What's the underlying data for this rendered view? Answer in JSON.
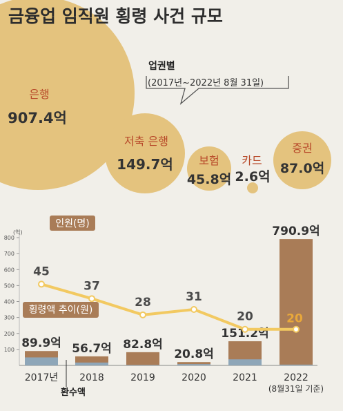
{
  "header": {
    "title": "금융업 임직원 횡령 사건 규모",
    "subtitle_line1": "업권별",
    "subtitle_line2": "(2017년~2022년 8월 31일)"
  },
  "colors": {
    "background": "#f1efe9",
    "bubble_fill": "#e4c37e",
    "bubble_text": "#b84a2a",
    "bar_total": "#a97c57",
    "bar_recovered": "#8ea6b8",
    "line": "#f2c961",
    "point_fill": "#ffffff",
    "label_tag": "#a97c57",
    "dark_text": "#333333",
    "highlight_text": "#e9a83a"
  },
  "bubble_chart": {
    "type": "bubble",
    "unit": "억",
    "items": [
      {
        "name": "은행",
        "value": 907.4,
        "value_label": "907.4억"
      },
      {
        "name": "저축 은행",
        "value": 149.7,
        "value_label": "149.7억"
      },
      {
        "name": "보험",
        "value": 45.8,
        "value_label": "45.8억"
      },
      {
        "name": "카드",
        "value": 2.6,
        "value_label": "2.6억"
      },
      {
        "name": "증권",
        "value": 87.0,
        "value_label": "87.0억"
      }
    ]
  },
  "chart_data": {
    "type": "bar",
    "categories": [
      "2017년",
      "2018",
      "2019",
      "2020",
      "2021",
      "2022"
    ],
    "category_note": "(8월31일 기준)",
    "y_unit_label": "(억)",
    "ylim": [
      0,
      800
    ],
    "yticks": [
      100,
      200,
      300,
      400,
      500,
      600,
      700,
      800
    ],
    "series": [
      {
        "name": "횡령액 추이(원)",
        "values": [
          89.9,
          56.7,
          82.8,
          20.8,
          151.2,
          790.9
        ],
        "value_labels": [
          "89.9억",
          "56.7억",
          "82.8억",
          "20.8억",
          "151.2억",
          "790.9억"
        ]
      },
      {
        "name": "환수액",
        "values": [
          50,
          18,
          3,
          8,
          38,
          5
        ]
      },
      {
        "name": "인원(명)",
        "type": "line",
        "values": [
          45,
          37,
          28,
          31,
          20,
          20
        ],
        "value_labels": [
          "45",
          "37",
          "28",
          "31",
          "20",
          "20"
        ]
      }
    ],
    "legend": {
      "line_label": "인원(명)",
      "bar_label": "횡령액 추이(원)",
      "recovered_label": "환수액"
    }
  }
}
